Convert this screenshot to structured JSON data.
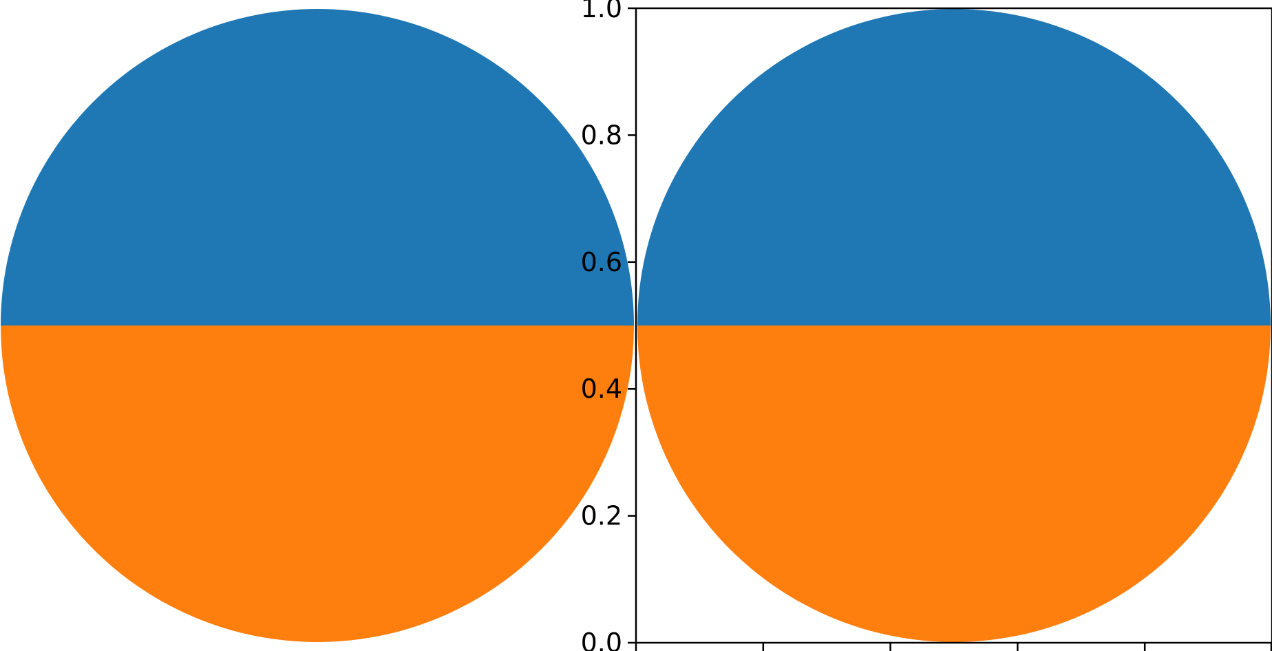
{
  "chart_data": [
    {
      "type": "pie",
      "slices": [
        {
          "value": 50,
          "color": "#1f77b4"
        },
        {
          "value": 50,
          "color": "#ff7f0e"
        }
      ],
      "axes_visible": false
    },
    {
      "type": "pie",
      "slices": [
        {
          "value": 50,
          "color": "#1f77b4"
        },
        {
          "value": 50,
          "color": "#ff7f0e"
        }
      ],
      "axes_visible": true,
      "ylim": [
        0,
        1
      ],
      "yticks": [
        "0.0",
        "0.2",
        "0.4",
        "0.6",
        "0.8",
        "1.0"
      ],
      "xticks": [
        "",
        "",
        "",
        "",
        "",
        ""
      ],
      "grid": false
    }
  ]
}
